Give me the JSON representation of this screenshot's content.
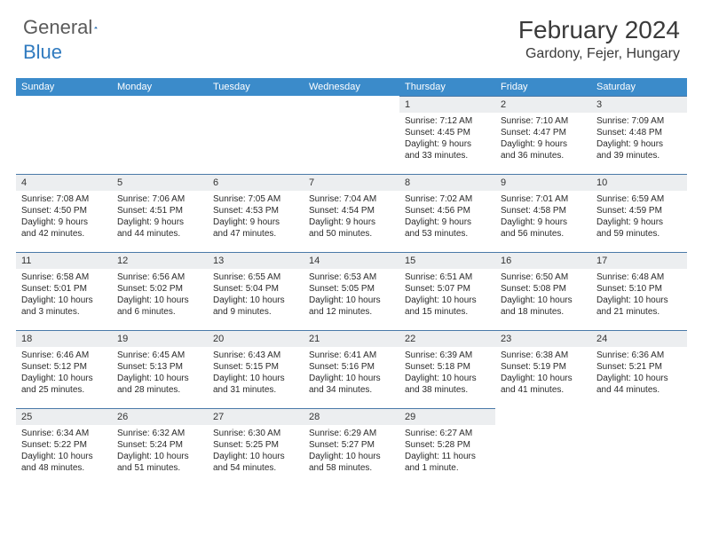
{
  "logo": {
    "text1": "General",
    "text2": "Blue"
  },
  "title": "February 2024",
  "location": "Gardony, Fejer, Hungary",
  "colors": {
    "header_bg": "#3b8bca",
    "daynum_bg": "#eceef0",
    "row_border": "#4a7aa8",
    "text": "#2a2a2a",
    "logo_gray": "#5a5a5a",
    "logo_blue": "#2f7abf"
  },
  "weekdays": [
    "Sunday",
    "Monday",
    "Tuesday",
    "Wednesday",
    "Thursday",
    "Friday",
    "Saturday"
  ],
  "weeks": [
    [
      null,
      null,
      null,
      null,
      {
        "n": "1",
        "sr": "7:12 AM",
        "ss": "4:45 PM",
        "d1": "Daylight: 9 hours",
        "d2": "and 33 minutes."
      },
      {
        "n": "2",
        "sr": "7:10 AM",
        "ss": "4:47 PM",
        "d1": "Daylight: 9 hours",
        "d2": "and 36 minutes."
      },
      {
        "n": "3",
        "sr": "7:09 AM",
        "ss": "4:48 PM",
        "d1": "Daylight: 9 hours",
        "d2": "and 39 minutes."
      }
    ],
    [
      {
        "n": "4",
        "sr": "7:08 AM",
        "ss": "4:50 PM",
        "d1": "Daylight: 9 hours",
        "d2": "and 42 minutes."
      },
      {
        "n": "5",
        "sr": "7:06 AM",
        "ss": "4:51 PM",
        "d1": "Daylight: 9 hours",
        "d2": "and 44 minutes."
      },
      {
        "n": "6",
        "sr": "7:05 AM",
        "ss": "4:53 PM",
        "d1": "Daylight: 9 hours",
        "d2": "and 47 minutes."
      },
      {
        "n": "7",
        "sr": "7:04 AM",
        "ss": "4:54 PM",
        "d1": "Daylight: 9 hours",
        "d2": "and 50 minutes."
      },
      {
        "n": "8",
        "sr": "7:02 AM",
        "ss": "4:56 PM",
        "d1": "Daylight: 9 hours",
        "d2": "and 53 minutes."
      },
      {
        "n": "9",
        "sr": "7:01 AM",
        "ss": "4:58 PM",
        "d1": "Daylight: 9 hours",
        "d2": "and 56 minutes."
      },
      {
        "n": "10",
        "sr": "6:59 AM",
        "ss": "4:59 PM",
        "d1": "Daylight: 9 hours",
        "d2": "and 59 minutes."
      }
    ],
    [
      {
        "n": "11",
        "sr": "6:58 AM",
        "ss": "5:01 PM",
        "d1": "Daylight: 10 hours",
        "d2": "and 3 minutes."
      },
      {
        "n": "12",
        "sr": "6:56 AM",
        "ss": "5:02 PM",
        "d1": "Daylight: 10 hours",
        "d2": "and 6 minutes."
      },
      {
        "n": "13",
        "sr": "6:55 AM",
        "ss": "5:04 PM",
        "d1": "Daylight: 10 hours",
        "d2": "and 9 minutes."
      },
      {
        "n": "14",
        "sr": "6:53 AM",
        "ss": "5:05 PM",
        "d1": "Daylight: 10 hours",
        "d2": "and 12 minutes."
      },
      {
        "n": "15",
        "sr": "6:51 AM",
        "ss": "5:07 PM",
        "d1": "Daylight: 10 hours",
        "d2": "and 15 minutes."
      },
      {
        "n": "16",
        "sr": "6:50 AM",
        "ss": "5:08 PM",
        "d1": "Daylight: 10 hours",
        "d2": "and 18 minutes."
      },
      {
        "n": "17",
        "sr": "6:48 AM",
        "ss": "5:10 PM",
        "d1": "Daylight: 10 hours",
        "d2": "and 21 minutes."
      }
    ],
    [
      {
        "n": "18",
        "sr": "6:46 AM",
        "ss": "5:12 PM",
        "d1": "Daylight: 10 hours",
        "d2": "and 25 minutes."
      },
      {
        "n": "19",
        "sr": "6:45 AM",
        "ss": "5:13 PM",
        "d1": "Daylight: 10 hours",
        "d2": "and 28 minutes."
      },
      {
        "n": "20",
        "sr": "6:43 AM",
        "ss": "5:15 PM",
        "d1": "Daylight: 10 hours",
        "d2": "and 31 minutes."
      },
      {
        "n": "21",
        "sr": "6:41 AM",
        "ss": "5:16 PM",
        "d1": "Daylight: 10 hours",
        "d2": "and 34 minutes."
      },
      {
        "n": "22",
        "sr": "6:39 AM",
        "ss": "5:18 PM",
        "d1": "Daylight: 10 hours",
        "d2": "and 38 minutes."
      },
      {
        "n": "23",
        "sr": "6:38 AM",
        "ss": "5:19 PM",
        "d1": "Daylight: 10 hours",
        "d2": "and 41 minutes."
      },
      {
        "n": "24",
        "sr": "6:36 AM",
        "ss": "5:21 PM",
        "d1": "Daylight: 10 hours",
        "d2": "and 44 minutes."
      }
    ],
    [
      {
        "n": "25",
        "sr": "6:34 AM",
        "ss": "5:22 PM",
        "d1": "Daylight: 10 hours",
        "d2": "and 48 minutes."
      },
      {
        "n": "26",
        "sr": "6:32 AM",
        "ss": "5:24 PM",
        "d1": "Daylight: 10 hours",
        "d2": "and 51 minutes."
      },
      {
        "n": "27",
        "sr": "6:30 AM",
        "ss": "5:25 PM",
        "d1": "Daylight: 10 hours",
        "d2": "and 54 minutes."
      },
      {
        "n": "28",
        "sr": "6:29 AM",
        "ss": "5:27 PM",
        "d1": "Daylight: 10 hours",
        "d2": "and 58 minutes."
      },
      {
        "n": "29",
        "sr": "6:27 AM",
        "ss": "5:28 PM",
        "d1": "Daylight: 11 hours",
        "d2": "and 1 minute."
      },
      null,
      null
    ]
  ],
  "labels": {
    "sunrise": "Sunrise: ",
    "sunset": "Sunset: "
  }
}
